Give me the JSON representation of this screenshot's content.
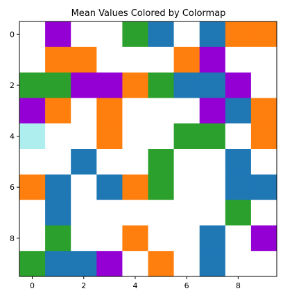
{
  "chart_data": {
    "type": "heatmap",
    "title": "Mean Values Colored by Colormap",
    "xlabel": "",
    "ylabel": "",
    "rows": 10,
    "cols": 10,
    "xlim": [
      -0.5,
      9.5
    ],
    "ylim": [
      9.5,
      -0.5
    ],
    "x_ticks": [
      0,
      2,
      4,
      6,
      8
    ],
    "y_ticks": [
      0,
      2,
      4,
      6,
      8
    ],
    "grid": false,
    "legend": "none",
    "palette": {
      "W": "#ffffff",
      "P": "#9400d3",
      "G": "#2ca02c",
      "B": "#1f77b4",
      "O": "#ff7f0e",
      "C": "#afeeee"
    },
    "cells": [
      [
        "W",
        "P",
        "W",
        "W",
        "G",
        "B",
        "W",
        "B",
        "O",
        "O"
      ],
      [
        "W",
        "O",
        "O",
        "W",
        "W",
        "W",
        "O",
        "P",
        "W",
        "W"
      ],
      [
        "G",
        "G",
        "P",
        "P",
        "O",
        "G",
        "B",
        "B",
        "P",
        "W"
      ],
      [
        "P",
        "O",
        "W",
        "O",
        "W",
        "W",
        "W",
        "P",
        "B",
        "O"
      ],
      [
        "C",
        "W",
        "W",
        "O",
        "W",
        "W",
        "G",
        "G",
        "W",
        "O"
      ],
      [
        "W",
        "W",
        "B",
        "W",
        "W",
        "G",
        "W",
        "W",
        "B",
        "W"
      ],
      [
        "O",
        "B",
        "W",
        "B",
        "O",
        "G",
        "W",
        "W",
        "B",
        "B"
      ],
      [
        "W",
        "B",
        "W",
        "W",
        "W",
        "W",
        "W",
        "W",
        "G",
        "W"
      ],
      [
        "W",
        "G",
        "W",
        "W",
        "O",
        "W",
        "W",
        "B",
        "W",
        "P"
      ],
      [
        "G",
        "B",
        "B",
        "P",
        "W",
        "O",
        "W",
        "B",
        "W",
        "W"
      ]
    ]
  }
}
